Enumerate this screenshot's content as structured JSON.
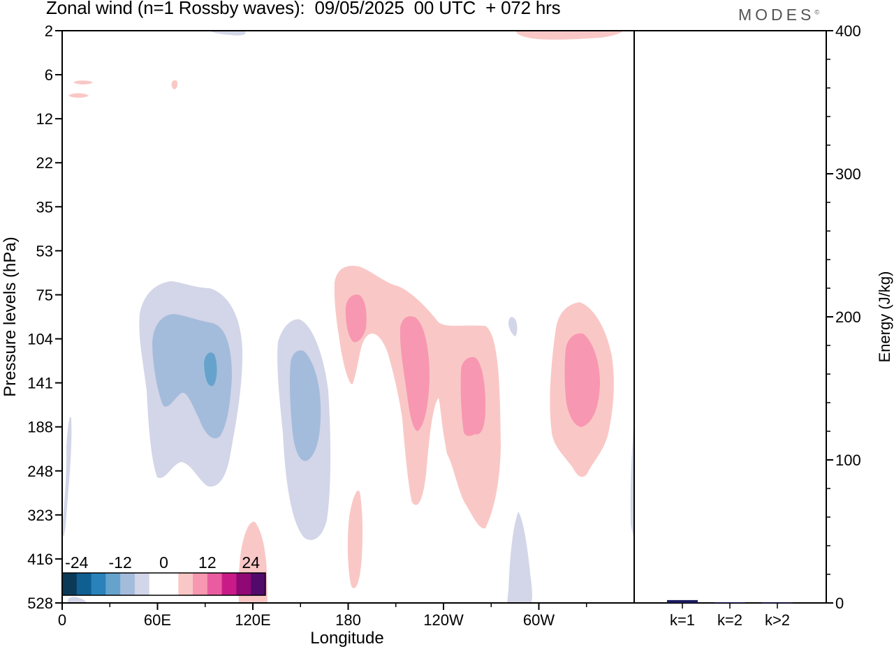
{
  "chart_data": [
    {
      "type": "heatmap",
      "title": "Zonal wind (n=1 Rossby waves):  09/05/2025  00 UTC  + 072 hrs",
      "xlabel": "Longitude",
      "ylabel": "Pressure levels (hPa)",
      "x_ticks": [
        "0",
        "60E",
        "120E",
        "180",
        "120W",
        "60W"
      ],
      "x_tick_values": [
        0,
        60,
        120,
        180,
        240,
        300
      ],
      "xlim": [
        0,
        360
      ],
      "y_ticks": [
        "2",
        "6",
        "12",
        "22",
        "35",
        "53",
        "75",
        "104",
        "141",
        "188",
        "248",
        "323",
        "416",
        "528"
      ],
      "colorbar": {
        "labels": [
          "-24",
          "-12",
          "0",
          "12",
          "24"
        ],
        "colors": [
          "#0b3a57",
          "#0f5f93",
          "#2a82bb",
          "#66a3cc",
          "#a4bcdb",
          "#d3d5e8",
          "#ffffff",
          "#ffffff",
          "#f9c8c6",
          "#f897b1",
          "#e95c9f",
          "#c91b87",
          "#8f0875",
          "#520a6a"
        ]
      },
      "anomalies": [
        {
          "sign": "negative",
          "lon": 45,
          "level": "141",
          "peak": -14
        },
        {
          "sign": "negative",
          "lon": 93,
          "level": "141",
          "peak": -20
        },
        {
          "sign": "negative",
          "lon": 150,
          "level": "188",
          "peak": -14
        },
        {
          "sign": "positive",
          "lon": 186,
          "level": "104",
          "peak": 10
        },
        {
          "sign": "positive",
          "lon": 222,
          "level": "141",
          "peak": 10
        },
        {
          "sign": "positive",
          "lon": 258,
          "level": "188",
          "peak": 10
        },
        {
          "sign": "positive",
          "lon": 325,
          "level": "141",
          "peak": 10
        },
        {
          "sign": "positive",
          "lon": 118,
          "level": "528",
          "peak": 6
        },
        {
          "sign": "negative",
          "lon": 285,
          "level": "416",
          "peak": -6
        }
      ]
    },
    {
      "type": "bar",
      "categories": [
        "k=1",
        "k=2",
        "k>2"
      ],
      "values": [
        2,
        0.5,
        0.3
      ],
      "ylabel": "Energy (J/kg)",
      "ylim": [
        0,
        400
      ],
      "y_ticks": [
        "0",
        "100",
        "200",
        "300",
        "400"
      ],
      "bar_color": "#1a1a5e"
    }
  ],
  "brand": {
    "name": "MODES",
    "mark": "©"
  }
}
